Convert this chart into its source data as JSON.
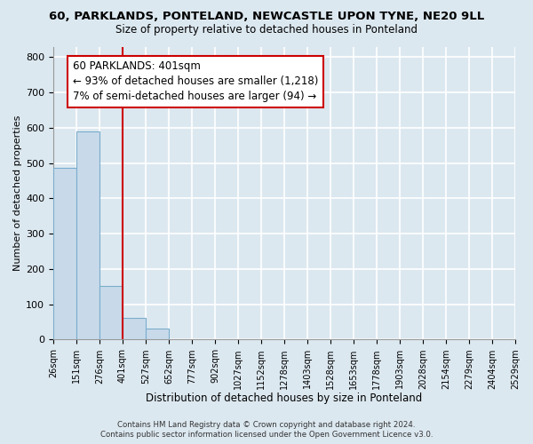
{
  "title": "60, PARKLANDS, PONTELAND, NEWCASTLE UPON TYNE, NE20 9LL",
  "subtitle": "Size of property relative to detached houses in Ponteland",
  "bar_heights": [
    487,
    591,
    152,
    62,
    31,
    0,
    0,
    0,
    0,
    0,
    0,
    0,
    0,
    0,
    0,
    0,
    0,
    0,
    0,
    0
  ],
  "bin_labels": [
    "26sqm",
    "151sqm",
    "276sqm",
    "401sqm",
    "527sqm",
    "652sqm",
    "777sqm",
    "902sqm",
    "1027sqm",
    "1152sqm",
    "1278sqm",
    "1403sqm",
    "1528sqm",
    "1653sqm",
    "1778sqm",
    "1903sqm",
    "2028sqm",
    "2154sqm",
    "2279sqm",
    "2404sqm",
    "2529sqm"
  ],
  "bar_color": "#c8daea",
  "bar_edge_color": "#7aadcc",
  "vline_color": "#cc0000",
  "annotation_text": "60 PARKLANDS: 401sqm\n← 93% of detached houses are smaller (1,218)\n7% of semi-detached houses are larger (94) →",
  "annotation_box_color": "white",
  "annotation_edge_color": "#cc0000",
  "xlabel": "Distribution of detached houses by size in Ponteland",
  "ylabel": "Number of detached properties",
  "ylim": [
    0,
    830
  ],
  "yticks": [
    0,
    100,
    200,
    300,
    400,
    500,
    600,
    700,
    800
  ],
  "footer_line1": "Contains HM Land Registry data © Crown copyright and database right 2024.",
  "footer_line2": "Contains public sector information licensed under the Open Government Licence v3.0.",
  "background_color": "#dce8f0",
  "plot_bg_color": "#dce8f0",
  "grid_color": "#ffffff"
}
